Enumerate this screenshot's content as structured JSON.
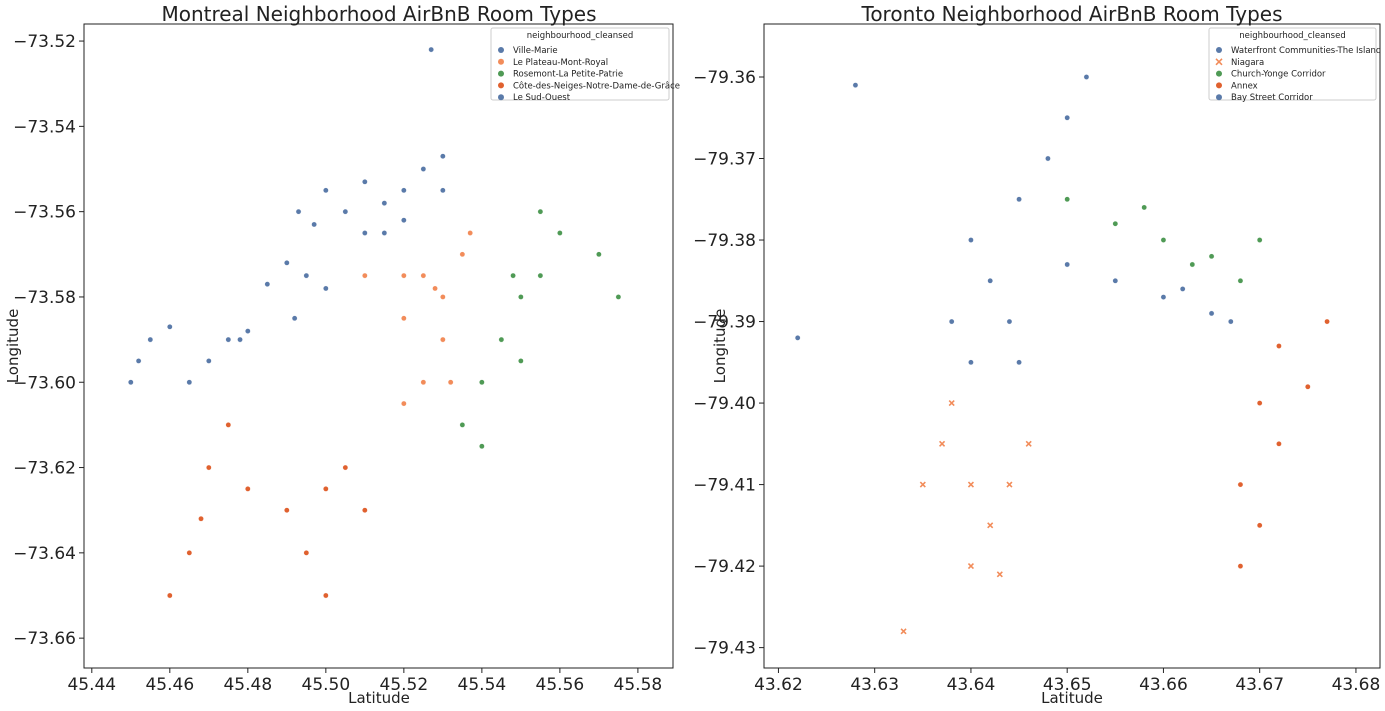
{
  "chart_data": [
    {
      "type": "scatter",
      "title": "Montreal Neighborhood AirBnB Room Types",
      "xlabel": "Latitude",
      "ylabel": "Longitude",
      "xlim": [
        45.438,
        45.589
      ],
      "ylim": [
        -73.667,
        -73.516
      ],
      "xticks": [
        45.44,
        45.46,
        45.48,
        45.5,
        45.52,
        45.54,
        45.56,
        45.58
      ],
      "xtick_labels": [
        "45.44",
        "45.46",
        "45.48",
        "45.50",
        "45.52",
        "45.54",
        "45.56",
        "45.58"
      ],
      "yticks": [
        -73.52,
        -73.54,
        -73.56,
        -73.58,
        -73.6,
        -73.62,
        -73.64,
        -73.66
      ],
      "ytick_labels": [
        "−73.52",
        "−73.54",
        "−73.56",
        "−73.58",
        "−73.60",
        "−73.62",
        "−73.64",
        "−73.66"
      ],
      "grid": false,
      "legend": {
        "title": "neighbourhood_cleansed",
        "placement": "top-right"
      },
      "series": [
        {
          "name": "Ville-Marie",
          "color": "#5a7aa9",
          "marker": "circle",
          "points": [
            [
              45.475,
              -73.59
            ],
            [
              45.47,
              -73.595
            ],
            [
              45.465,
              -73.6
            ],
            [
              45.48,
              -73.588
            ],
            [
              45.485,
              -73.577
            ],
            [
              45.49,
              -73.572
            ],
            [
              45.495,
              -73.575
            ],
            [
              45.5,
              -73.578
            ],
            [
              45.455,
              -73.59
            ],
            [
              45.452,
              -73.595
            ],
            [
              45.45,
              -73.6
            ],
            [
              45.46,
              -73.587
            ],
            [
              45.478,
              -73.59
            ],
            [
              45.492,
              -73.585
            ],
            [
              45.497,
              -73.563
            ],
            [
              45.493,
              -73.56
            ]
          ]
        },
        {
          "name": "Le Plateau-Mont-Royal",
          "color": "#f28c5a",
          "marker": "circle",
          "points": [
            [
              45.525,
              -73.575
            ],
            [
              45.52,
              -73.585
            ],
            [
              45.53,
              -73.58
            ],
            [
              45.53,
              -73.59
            ],
            [
              45.535,
              -73.57
            ],
            [
              45.52,
              -73.575
            ],
            [
              45.51,
              -73.575
            ],
            [
              45.525,
              -73.6
            ],
            [
              45.52,
              -73.605
            ],
            [
              45.532,
              -73.6
            ],
            [
              45.537,
              -73.565
            ],
            [
              45.528,
              -73.578
            ]
          ]
        },
        {
          "name": "Rosemont-La Petite-Patrie",
          "color": "#4f9a55",
          "marker": "circle",
          "points": [
            [
              45.545,
              -73.59
            ],
            [
              45.54,
              -73.6
            ],
            [
              45.535,
              -73.61
            ],
            [
              45.55,
              -73.58
            ],
            [
              45.555,
              -73.575
            ],
            [
              45.56,
              -73.565
            ],
            [
              45.555,
              -73.56
            ],
            [
              45.57,
              -73.57
            ],
            [
              45.575,
              -73.58
            ],
            [
              45.54,
              -73.615
            ],
            [
              45.55,
              -73.595
            ],
            [
              45.548,
              -73.575
            ]
          ]
        },
        {
          "name": "Côte-des-Neiges-Notre-Dame-de-Grâce",
          "color": "#e0612f",
          "marker": "circle",
          "points": [
            [
              45.47,
              -73.62
            ],
            [
              45.475,
              -73.61
            ],
            [
              45.48,
              -73.625
            ],
            [
              45.49,
              -73.63
            ],
            [
              45.5,
              -73.625
            ],
            [
              45.505,
              -73.62
            ],
            [
              45.51,
              -73.63
            ],
            [
              45.465,
              -73.64
            ],
            [
              45.46,
              -73.65
            ],
            [
              45.495,
              -73.64
            ],
            [
              45.5,
              -73.65
            ],
            [
              45.468,
              -73.632
            ]
          ]
        },
        {
          "name": "Le Sud-Ouest",
          "color": "#5a7aa9",
          "marker": "circle",
          "points": [
            [
              45.505,
              -73.56
            ],
            [
              45.51,
              -73.565
            ],
            [
              45.515,
              -73.558
            ],
            [
              45.52,
              -73.555
            ],
            [
              45.525,
              -73.55
            ],
            [
              45.53,
              -73.555
            ],
            [
              45.5,
              -73.555
            ],
            [
              45.515,
              -73.565
            ],
            [
              45.52,
              -73.562
            ],
            [
              45.527,
              -73.522
            ],
            [
              45.51,
              -73.553
            ],
            [
              45.53,
              -73.547
            ]
          ]
        }
      ]
    },
    {
      "type": "scatter",
      "title": "Toronto Neighborhood AirBnB Room Types",
      "xlabel": "Latitude",
      "ylabel": "Longitude",
      "xlim": [
        43.6185,
        43.6825
      ],
      "ylim": [
        -79.4325,
        -79.3535
      ],
      "xticks": [
        43.62,
        43.63,
        43.64,
        43.65,
        43.66,
        43.67,
        43.68
      ],
      "xtick_labels": [
        "43.62",
        "43.63",
        "43.64",
        "43.65",
        "43.66",
        "43.67",
        "43.68"
      ],
      "yticks": [
        -79.36,
        -79.37,
        -79.38,
        -79.39,
        -79.4,
        -79.41,
        -79.42,
        -79.43
      ],
      "ytick_labels": [
        "−79.36",
        "−79.37",
        "−79.38",
        "−79.39",
        "−79.40",
        "−79.41",
        "−79.42",
        "−79.43"
      ],
      "grid": false,
      "legend": {
        "title": "neighbourhood_cleansed",
        "placement": "top-right"
      },
      "series": [
        {
          "name": "Waterfront Communities-The Island",
          "color": "#5a7aa9",
          "marker": "circle",
          "points": [
            [
              43.64,
              -79.38
            ],
            [
              43.642,
              -79.385
            ],
            [
              43.644,
              -79.39
            ],
            [
              43.645,
              -79.395
            ],
            [
              43.64,
              -79.395
            ],
            [
              43.638,
              -79.39
            ],
            [
              43.645,
              -79.375
            ],
            [
              43.648,
              -79.37
            ],
            [
              43.65,
              -79.365
            ],
            [
              43.652,
              -79.36
            ],
            [
              43.628,
              -79.361
            ],
            [
              43.622,
              -79.392
            ]
          ]
        },
        {
          "name": "Niagara",
          "color": "#f28c5a",
          "marker": "x",
          "points": [
            [
              43.637,
              -79.405
            ],
            [
              43.64,
              -79.41
            ],
            [
              43.642,
              -79.415
            ],
            [
              43.644,
              -79.41
            ],
            [
              43.646,
              -79.405
            ],
            [
              43.638,
              -79.4
            ],
            [
              43.64,
              -79.42
            ],
            [
              43.643,
              -79.421
            ],
            [
              43.633,
              -79.428
            ],
            [
              43.635,
              -79.41
            ]
          ]
        },
        {
          "name": "Church-Yonge Corridor",
          "color": "#4f9a55",
          "marker": "circle",
          "points": [
            [
              43.65,
              -79.375
            ],
            [
              43.655,
              -79.378
            ],
            [
              43.66,
              -79.38
            ],
            [
              43.665,
              -79.382
            ],
            [
              43.668,
              -79.385
            ],
            [
              43.67,
              -79.38
            ],
            [
              43.658,
              -79.376
            ],
            [
              43.663,
              -79.383
            ]
          ]
        },
        {
          "name": "Annex",
          "color": "#e0612f",
          "marker": "circle",
          "points": [
            [
              43.67,
              -79.4
            ],
            [
              43.672,
              -79.405
            ],
            [
              43.668,
              -79.41
            ],
            [
              43.675,
              -79.398
            ],
            [
              43.67,
              -79.415
            ],
            [
              43.668,
              -79.42
            ],
            [
              43.672,
              -79.393
            ],
            [
              43.677,
              -79.39
            ]
          ]
        },
        {
          "name": "Bay Street Corridor",
          "color": "#5a7aa9",
          "marker": "circle",
          "points": [
            [
              43.655,
              -79.385
            ],
            [
              43.66,
              -79.387
            ],
            [
              43.665,
              -79.389
            ],
            [
              43.65,
              -79.383
            ],
            [
              43.662,
              -79.386
            ],
            [
              43.667,
              -79.39
            ]
          ]
        }
      ]
    }
  ]
}
